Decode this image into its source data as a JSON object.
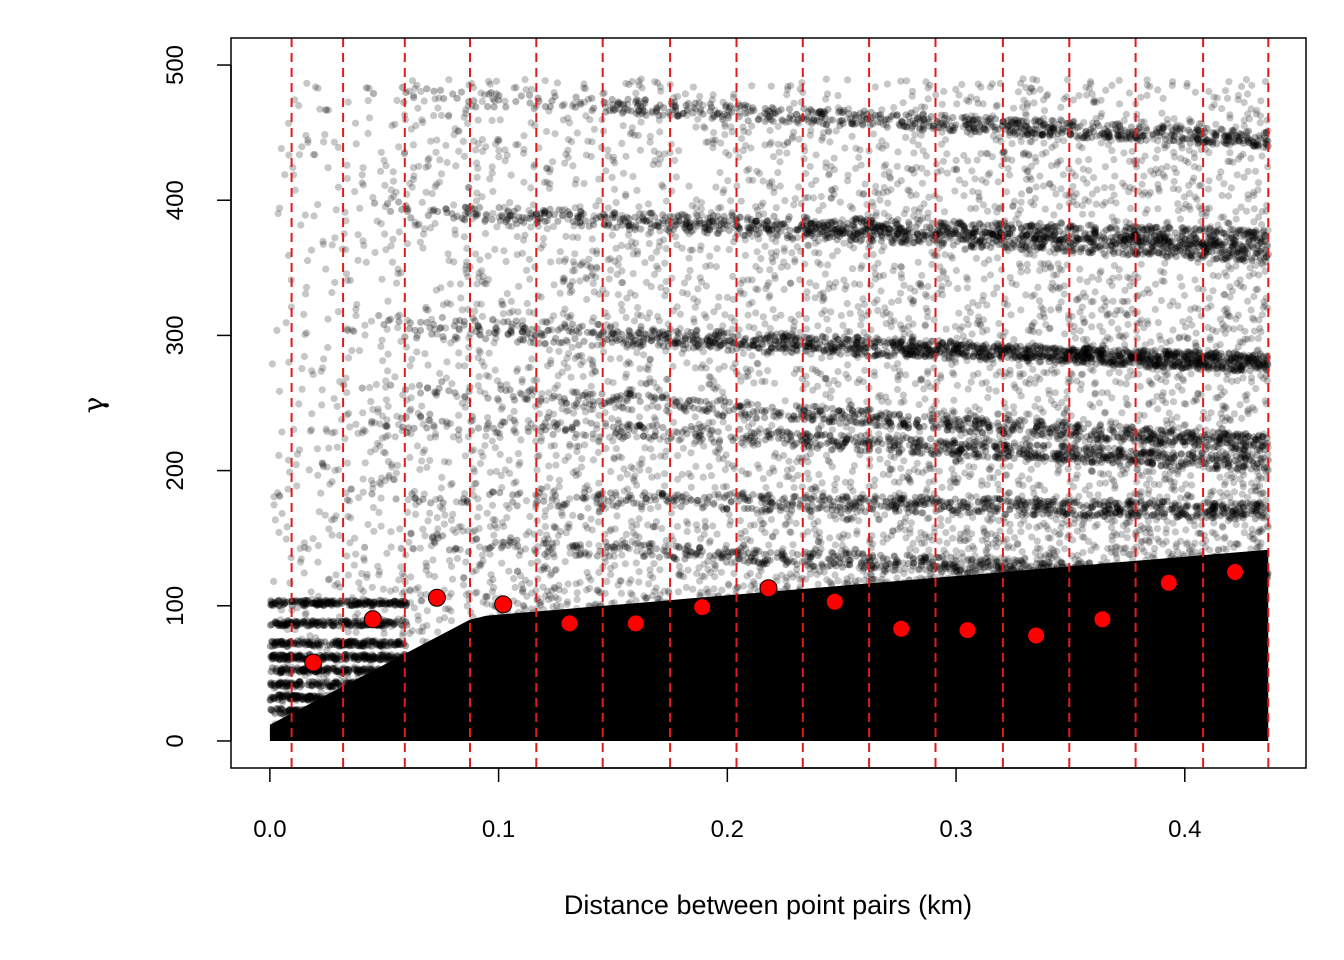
{
  "chart_data": {
    "type": "scatter",
    "title": "",
    "xlabel": "Distance between point pairs (km)",
    "ylabel": "γ",
    "xlim": [
      -0.017,
      0.453
    ],
    "ylim": [
      -20,
      520
    ],
    "x_ticks": [
      "0.0",
      "0.1",
      "0.2",
      "0.3",
      "0.4"
    ],
    "x_tick_values": [
      0.0,
      0.1,
      0.2,
      0.3,
      0.4
    ],
    "y_ticks": [
      "0",
      "100",
      "200",
      "300",
      "400",
      "500"
    ],
    "y_tick_values": [
      0,
      100,
      200,
      300,
      400,
      500
    ],
    "bin_breaks": [
      0.0095,
      0.032,
      0.059,
      0.0875,
      0.1165,
      0.1455,
      0.175,
      0.204,
      0.233,
      0.262,
      0.291,
      0.3205,
      0.3495,
      0.3785,
      0.408,
      0.4365
    ],
    "binned_semivariance": {
      "x": [
        0.019,
        0.045,
        0.073,
        0.102,
        0.131,
        0.16,
        0.189,
        0.218,
        0.247,
        0.276,
        0.305,
        0.335,
        0.364,
        0.393,
        0.422
      ],
      "y": [
        58,
        90,
        106,
        101,
        87,
        87,
        99,
        113,
        103,
        83,
        82,
        78,
        90,
        117,
        125
      ]
    },
    "point_cloud_x_range": [
      0.0,
      0.4365
    ],
    "point_cloud_y_range": [
      0,
      500
    ],
    "point_cloud_bands": [
      {
        "y0": 480,
        "y1": 445
      },
      {
        "y0": 392,
        "y1": 372
      },
      {
        "y0": 395,
        "y1": 360
      },
      {
        "y0": 312,
        "y1": 278
      },
      {
        "y0": 305,
        "y1": 280
      },
      {
        "y0": 265,
        "y1": 220
      },
      {
        "y0": 182,
        "y1": 170
      },
      {
        "y0": 150,
        "y1": 120
      },
      {
        "y0": 240,
        "y1": 205
      }
    ],
    "colors": {
      "points": "#000000",
      "bin_lines": "#e31a1c",
      "binned_points": "#ff0000"
    },
    "grid": false,
    "legend": "none"
  }
}
